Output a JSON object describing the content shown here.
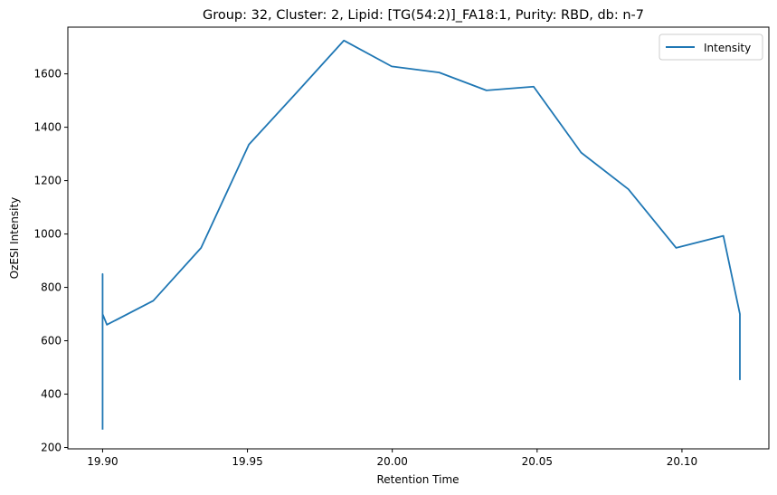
{
  "chart_data": {
    "type": "line",
    "title": "Group: 32, Cluster: 2, Lipid: [TG(54:2)]_FA18:1, Purity: RBD, db: n-7",
    "xlabel": "Retention Time",
    "ylabel": "OzESI Intensity",
    "xlim": [
      19.888,
      20.13
    ],
    "ylim": [
      195,
      1775
    ],
    "xticks": [
      19.9,
      19.95,
      20.0,
      20.05,
      20.1
    ],
    "xtick_labels": [
      "19.90",
      "19.95",
      "20.00",
      "20.05",
      "20.10"
    ],
    "yticks": [
      200,
      400,
      600,
      800,
      1000,
      1200,
      1400,
      1600
    ],
    "ytick_labels": [
      "200",
      "400",
      "600",
      "800",
      "1000",
      "1200",
      "1400",
      "1600"
    ],
    "grid": false,
    "legend": {
      "position": "top-right",
      "entries": [
        "Intensity"
      ]
    },
    "series": [
      {
        "name": "Intensity",
        "color": "#1f77b4",
        "x": [
          19.9,
          19.9,
          19.9,
          19.9,
          19.9,
          19.9,
          19.9,
          19.9,
          19.9015,
          19.9175,
          19.934,
          19.9505,
          19.967,
          19.9833,
          19.9998,
          20.0162,
          20.0325,
          20.0488,
          20.0652,
          20.0815,
          20.098,
          20.1143,
          20.12,
          20.12,
          20.12,
          20.12,
          20.12,
          20.12
        ],
        "y": [
          270,
          570,
          300,
          560,
          850,
          720,
          760,
          700,
          660,
          750,
          948,
          1335,
          1530,
          1725,
          1628,
          1605,
          1538,
          1552,
          1305,
          1168,
          948,
          993,
          700,
          455,
          690,
          540,
          680,
          600
        ]
      }
    ]
  }
}
